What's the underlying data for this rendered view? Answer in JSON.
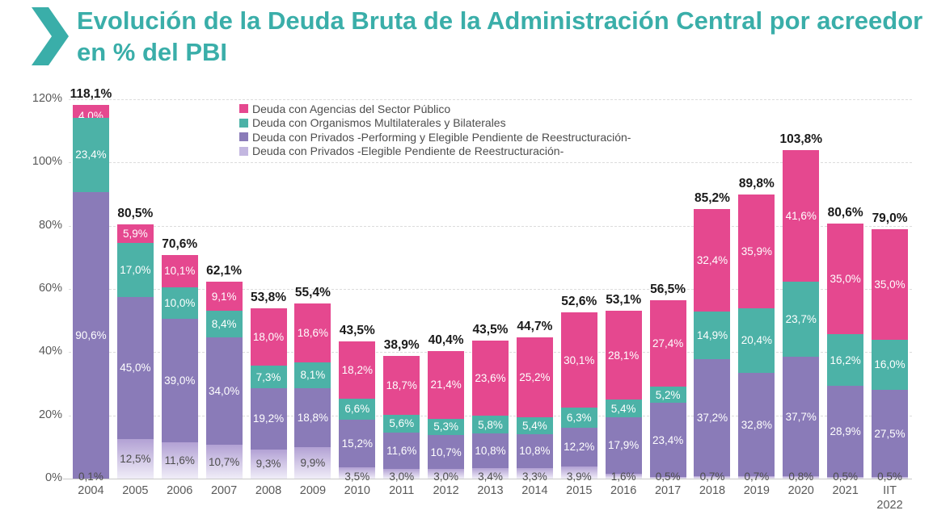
{
  "header": {
    "title": "Evolución de la Deuda Bruta de la Administración Central por acreedor en % del PBI",
    "accent_color": "#3aaea9"
  },
  "chart_data": {
    "type": "bar",
    "stacked": true,
    "stack_order": "first-series-on-top",
    "title": "Evolución de la Deuda Bruta de la Administración Central por acreedor en % del PBI",
    "value_format": "comma-decimal-percent",
    "grid": "horizontal-dashed",
    "legend_position": "top-inside-left",
    "ylim": [
      0,
      120
    ],
    "ytick_labels": [
      "0%",
      "20%",
      "40%",
      "60%",
      "80%",
      "100%",
      "120%"
    ],
    "categories": [
      "2004",
      "2005",
      "2006",
      "2007",
      "2008",
      "2009",
      "2010",
      "2011",
      "2012",
      "2013",
      "2014",
      "2015",
      "2016",
      "2017",
      "2018",
      "2019",
      "2020",
      "2021",
      "IIT 2022"
    ],
    "totals": [
      118.1,
      80.5,
      70.6,
      62.1,
      53.8,
      55.4,
      43.5,
      38.9,
      40.4,
      43.5,
      44.7,
      52.6,
      53.1,
      56.5,
      85.2,
      89.8,
      103.8,
      80.6,
      79.0
    ],
    "series": [
      {
        "name": "Deuda con Agencias del Sector Público",
        "color": "#e5488f",
        "label_color": "#ffffff",
        "values": [
          4.0,
          5.9,
          10.1,
          9.1,
          18.0,
          18.6,
          18.2,
          18.7,
          21.4,
          23.6,
          25.2,
          30.1,
          28.1,
          27.4,
          32.4,
          35.9,
          41.6,
          35.0,
          35.0
        ]
      },
      {
        "name": "Deuda con Organismos Multilaterales y Bilaterales",
        "color": "#4cb2a7",
        "label_color": "#ffffff",
        "values": [
          23.4,
          17.0,
          10.0,
          8.4,
          7.3,
          8.1,
          6.6,
          5.6,
          5.3,
          5.8,
          5.4,
          6.3,
          5.4,
          5.2,
          14.9,
          20.4,
          23.7,
          16.2,
          16.0
        ]
      },
      {
        "name": "Deuda con Privados -Performing y Elegible Pendiente de Reestructuración-",
        "color": "#8a7bb8",
        "label_color": "#ffffff",
        "values": [
          90.6,
          45.0,
          39.0,
          34.0,
          19.2,
          18.8,
          15.2,
          11.6,
          10.7,
          10.8,
          10.8,
          12.2,
          17.9,
          23.4,
          37.2,
          32.8,
          37.7,
          28.9,
          27.5
        ]
      },
      {
        "name": "Deuda con Privados -Elegible Pendiente de Reestructuración-",
        "color": "#c3b7e0",
        "gradient_top": "#b2a1d4",
        "gradient_bottom": "#f0edf8",
        "label_color": "#4d4d4d",
        "values": [
          0.1,
          12.5,
          11.6,
          10.7,
          9.3,
          9.9,
          3.5,
          3.0,
          3.0,
          3.4,
          3.3,
          3.9,
          1.6,
          0.5,
          0.7,
          0.7,
          0.8,
          0.5,
          0.5
        ]
      }
    ]
  }
}
